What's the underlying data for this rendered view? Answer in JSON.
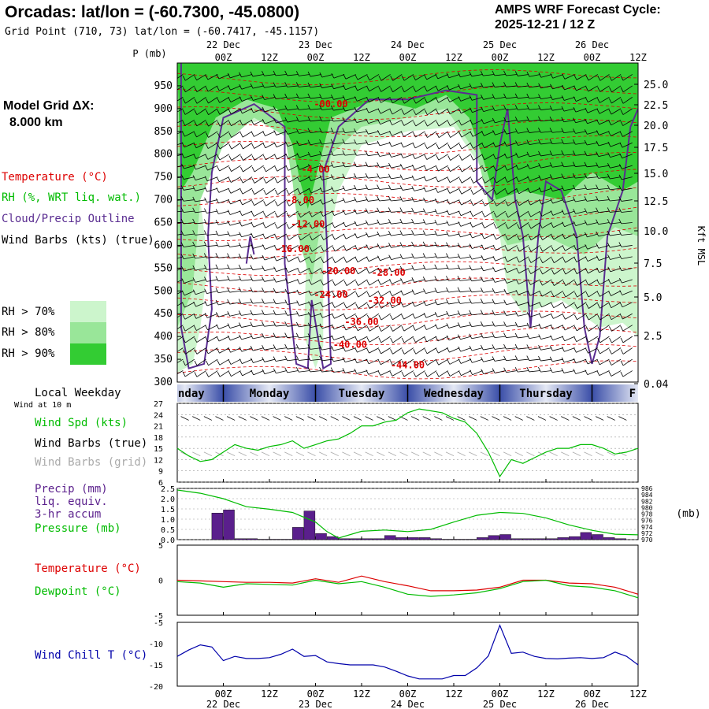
{
  "header": {
    "title": "Orcadas:  lat/lon = (-60.7300, -45.0800)",
    "grid_point": "Grid Point (710, 73) lat/lon = (-60.7417, -45.1157)",
    "cycle_label": "AMPS WRF Forecast Cycle:",
    "cycle_value": "2025-12-21 / 12  Z"
  },
  "left_panel": {
    "grid_dx_label": "Model Grid ΔX:",
    "grid_dx_value": "8.000 km",
    "temperature": "Temperature (°C)",
    "rh": "RH (%, WRT liq. wat.)",
    "cloud": "Cloud/Precip Outline",
    "wind_barbs": "Wind Barbs (kts) (true)",
    "rh_legend": [
      {
        "label": "RH > 70%",
        "color": "#ccf5cc"
      },
      {
        "label": "RH > 80%",
        "color": "#99e699"
      },
      {
        "label": "RH > 90%",
        "color": "#33cc33"
      }
    ]
  },
  "time_axis": {
    "tick_labels": [
      "00Z",
      "12Z",
      "00Z",
      "12Z",
      "00Z",
      "12Z",
      "00Z",
      "12Z",
      "00Z",
      "12Z"
    ],
    "tick_hours": [
      12,
      24,
      36,
      48,
      60,
      72,
      84,
      96,
      108,
      120
    ],
    "date_labels": [
      "22 Dec",
      "23 Dec",
      "24 Dec",
      "25 Dec",
      "26 Dec"
    ],
    "date_hours": [
      12,
      36,
      60,
      84,
      108
    ],
    "x_range_hours": [
      0,
      120
    ]
  },
  "weekday_bar": {
    "label": "Local Weekday",
    "days": [
      "Sunday",
      "Monday",
      "Tuesday",
      "Wednesday",
      "Thursday",
      "Friday"
    ],
    "day_bounds_hours": [
      -8,
      12,
      36,
      60,
      84,
      108,
      132
    ],
    "visible_text": [
      "nday",
      "Monday",
      "Tuesday",
      "Wednesday",
      "Thursday",
      "F"
    ]
  },
  "colors": {
    "temperature": "#dd0000",
    "dewpoint": "#00bb00",
    "wind_speed": "#00bb00",
    "pressure": "#00bb00",
    "precip": "#5a1f8c",
    "wind_chill": "#0000aa",
    "cloud_outline": "#5a2d91",
    "barb_true": "#000000",
    "barb_grid": "#aaaaaa"
  },
  "chart_data": [
    {
      "type": "heatmap",
      "name": "cross-section",
      "y_left_label": "P (mb)",
      "y_left_ticks": [
        300,
        350,
        400,
        450,
        500,
        550,
        600,
        650,
        700,
        750,
        800,
        850,
        900,
        950
      ],
      "y_left_range": [
        1000,
        300
      ],
      "y_right_ticks": [
        "25.0",
        "22.5",
        "20.0",
        "17.5",
        "15.0",
        "12.5",
        "10.0",
        "7.5",
        "5.0",
        "2.5",
        "0.04"
      ],
      "y_right_label": "Kft MSL",
      "temperature_contour_labels": [
        {
          "text": "-44.00",
          "hour": 60,
          "p": 330
        },
        {
          "text": "-40.00",
          "hour": 45,
          "p": 375
        },
        {
          "text": "-36.00",
          "hour": 48,
          "p": 425
        },
        {
          "text": "-32.00",
          "hour": 54,
          "p": 472
        },
        {
          "text": "-28.00",
          "hour": 55,
          "p": 533
        },
        {
          "text": "-24.00",
          "hour": 40,
          "p": 485
        },
        {
          "text": "-20.00",
          "hour": 42,
          "p": 537
        },
        {
          "text": "-16.00",
          "hour": 30,
          "p": 585
        },
        {
          "text": "-12.00",
          "hour": 34,
          "p": 640
        },
        {
          "text": "-8.00",
          "hour": 32,
          "p": 692
        },
        {
          "text": "-4.00",
          "hour": 36,
          "p": 760
        },
        {
          "text": "-00.00",
          "hour": 40,
          "p": 903
        }
      ]
    },
    {
      "type": "line",
      "name": "wind",
      "header": "Wind at 10 m",
      "labels": [
        "Wind Spd (kts)",
        "Wind Barbs (true)",
        "Wind Barbs (grid)"
      ],
      "y_ticks": [
        6,
        9,
        12,
        15,
        18,
        21,
        24,
        27
      ],
      "ylim": [
        6,
        27
      ],
      "x": [
        0,
        3,
        6,
        9,
        12,
        15,
        18,
        21,
        24,
        27,
        30,
        33,
        36,
        39,
        42,
        45,
        48,
        51,
        54,
        57,
        60,
        63,
        66,
        69,
        72,
        75,
        78,
        81,
        84,
        87,
        90,
        93,
        96,
        99,
        102,
        105,
        108,
        111,
        114,
        117,
        120
      ],
      "values": [
        15,
        13,
        11.5,
        12,
        14,
        16,
        15,
        14.5,
        15.5,
        16,
        17,
        15,
        16,
        17,
        17.5,
        19,
        21,
        21,
        22,
        22.5,
        24.5,
        25.5,
        25,
        24.5,
        23,
        22,
        19,
        14,
        7.5,
        12,
        11,
        12.5,
        14,
        15,
        15,
        16,
        16,
        15,
        13.5,
        14,
        15
      ]
    },
    {
      "type": "bar",
      "name": "precip-pressure",
      "labels": [
        "Precip (mm)",
        "liq. equiv.",
        "3-hr accum",
        "Pressure (mb)"
      ],
      "y_left_ticks": [
        "0.0",
        "0.5",
        "1.0",
        "1.5",
        "2.0",
        "2.5"
      ],
      "ylim": [
        0,
        2.5
      ],
      "y_right_ticks": [
        970,
        972,
        974,
        976,
        978,
        980,
        982,
        984,
        986
      ],
      "y_right_range": [
        970,
        986
      ],
      "y_right_unit": "(mb)",
      "precip_hours": [
        10.5,
        13.5,
        16.5,
        19.5,
        22.5,
        25.5,
        28.5,
        31.5,
        34.5,
        37.5,
        40.5,
        43.5,
        46.5,
        49.5,
        52.5,
        55.5,
        58.5,
        61.5,
        64.5,
        67.5,
        70.5,
        73.5,
        76.5,
        79.5,
        82.5,
        85.5,
        88.5,
        91.5,
        94.5,
        97.5,
        100.5,
        103.5,
        106.5,
        109.5,
        112.5,
        115.5
      ],
      "precip_values": [
        1.3,
        1.45,
        0.05,
        0.05,
        0.02,
        0.02,
        0.02,
        0.6,
        1.4,
        0.3,
        0.15,
        0.05,
        0.05,
        0.05,
        0.05,
        0.2,
        0.1,
        0.1,
        0.1,
        0.05,
        0.02,
        0.02,
        0.02,
        0.1,
        0.2,
        0.25,
        0.05,
        0.05,
        0.05,
        0.05,
        0.1,
        0.15,
        0.35,
        0.25,
        0.1,
        0.05
      ],
      "pressure_x": [
        0,
        6,
        12,
        18,
        24,
        30,
        36,
        39,
        42,
        48,
        54,
        60,
        66,
        72,
        78,
        84,
        90,
        96,
        102,
        108,
        114,
        120
      ],
      "pressure_values": [
        985.5,
        984.5,
        982.8,
        980.3,
        979.5,
        978.5,
        975.5,
        972.5,
        970.5,
        972.6,
        973,
        972.5,
        973.2,
        975.5,
        977.6,
        978.5,
        978.2,
        976.8,
        974.6,
        972.9,
        971.7,
        971.5
      ]
    },
    {
      "type": "line",
      "name": "temperature-dewpoint",
      "labels": [
        "Temperature (°C)",
        "Dewpoint (°C)"
      ],
      "y_ticks": [
        -5,
        0,
        5
      ],
      "ylim": [
        -5,
        5
      ],
      "x": [
        0,
        6,
        12,
        18,
        24,
        30,
        36,
        42,
        48,
        54,
        60,
        66,
        72,
        78,
        84,
        90,
        96,
        102,
        108,
        114,
        120
      ],
      "series": [
        {
          "name": "Temperature (°C)",
          "values": [
            0,
            -0.1,
            -0.2,
            -0.3,
            -0.3,
            -0.4,
            0.2,
            -0.3,
            0.6,
            -0.2,
            -0.8,
            -1.5,
            -1.5,
            -1.4,
            -1.0,
            0.0,
            0.0,
            -0.4,
            -0.5,
            -1.0,
            -2.0
          ]
        },
        {
          "name": "Dewpoint (°C)",
          "values": [
            -0.2,
            -0.4,
            -1.0,
            -0.5,
            -0.6,
            -0.7,
            0.0,
            -0.5,
            -0.2,
            -1.0,
            -2.0,
            -2.3,
            -2.1,
            -1.8,
            -1.2,
            -0.2,
            0.0,
            -0.8,
            -1.0,
            -1.5,
            -2.5
          ]
        }
      ]
    },
    {
      "type": "line",
      "name": "wind-chill",
      "labels": [
        "Wind Chill T (°C)"
      ],
      "y_ticks": [
        -5,
        -10,
        -15,
        -20
      ],
      "ylim": [
        -20,
        -5
      ],
      "x": [
        0,
        3,
        6,
        9,
        12,
        15,
        18,
        21,
        24,
        27,
        30,
        33,
        36,
        39,
        42,
        45,
        48,
        51,
        54,
        57,
        60,
        63,
        66,
        69,
        72,
        75,
        78,
        81,
        84,
        87,
        90,
        93,
        96,
        99,
        102,
        105,
        108,
        111,
        114,
        117,
        120
      ],
      "values": [
        -13,
        -11.5,
        -10.3,
        -10.8,
        -14,
        -13,
        -13.5,
        -13.5,
        -13.3,
        -12.5,
        -11.3,
        -13,
        -12.8,
        -14.3,
        -14.7,
        -15,
        -15,
        -15,
        -15.5,
        -16.5,
        -17.6,
        -18.3,
        -18.3,
        -18.3,
        -17.5,
        -17.5,
        -15.7,
        -12.9,
        -5.7,
        -12.3,
        -12,
        -13,
        -13.5,
        -13.6,
        -13.4,
        -13.3,
        -13.5,
        -13.3,
        -12,
        -13,
        -15
      ]
    }
  ]
}
